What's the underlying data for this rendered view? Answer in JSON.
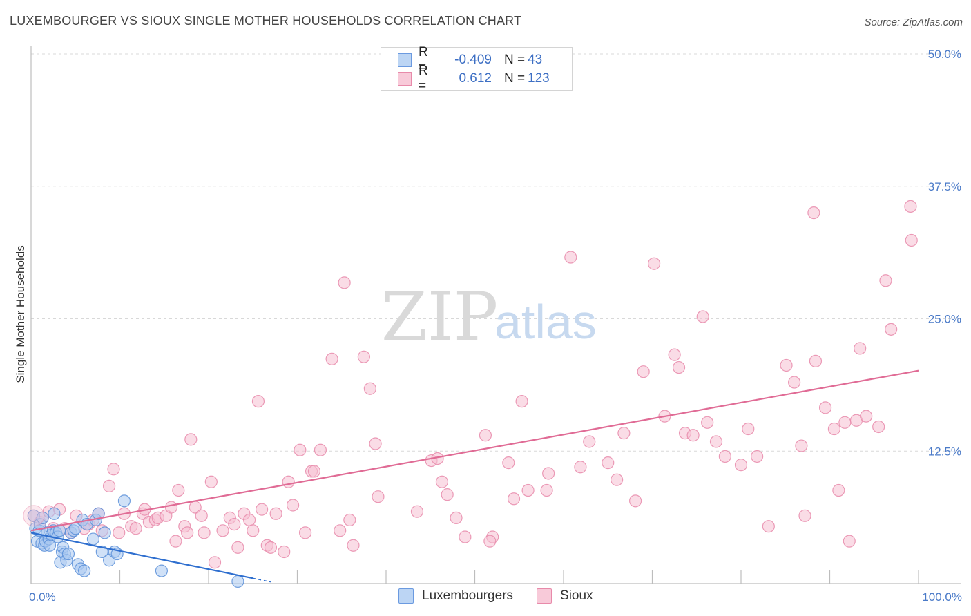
{
  "title": "LUXEMBOURGER VS SIOUX SINGLE MOTHER HOUSEHOLDS CORRELATION CHART",
  "source": "Source: ZipAtlas.com",
  "watermark": {
    "zip": "ZIP",
    "atlas": "atlas"
  },
  "colors": {
    "blue_fill": "#a9c8f0",
    "blue_stroke": "#5b8fd8",
    "blue_line": "#2f6fcf",
    "pink_fill": "#f6c0d2",
    "pink_stroke": "#e88aaa",
    "pink_line": "#e06b95",
    "grid": "#d8d8d8",
    "tick_text": "#4a7ac8"
  },
  "legend": {
    "rows": [
      {
        "series": "Luxembourgers",
        "r_label": "R =",
        "r_value": "-0.409",
        "n_label": "N =",
        "n_value": "43"
      },
      {
        "series": "Sioux",
        "r_label": "R =",
        "r_value": "0.612",
        "n_label": "N =",
        "n_value": "123"
      }
    ]
  },
  "bottom_legend": {
    "items": [
      "Luxembourgers",
      "Sioux"
    ]
  },
  "chart_data": {
    "type": "scatter",
    "title": "LUXEMBOURGER VS SIOUX SINGLE MOTHER HOUSEHOLDS CORRELATION CHART",
    "xlabel": "",
    "ylabel": "Single Mother Households",
    "xlim": [
      0,
      100
    ],
    "ylim": [
      0,
      50
    ],
    "x_tick_labels": [
      "0.0%",
      "100.0%"
    ],
    "y_ticks": [
      12.5,
      25.0,
      37.5,
      50.0
    ],
    "y_tick_labels": [
      "12.5%",
      "25.0%",
      "37.5%",
      "50.0%"
    ],
    "grid": true,
    "series": [
      {
        "name": "Luxembourgers",
        "color": "#5b8fd8",
        "trend": {
          "x": [
            0,
            25
          ],
          "y": [
            4.8,
            0.5
          ],
          "dashed_to_x": 27
        },
        "points": [
          [
            0.3,
            6.4
          ],
          [
            0.5,
            5.2
          ],
          [
            0.7,
            4.0
          ],
          [
            0.9,
            5.0
          ],
          [
            1.0,
            5.6
          ],
          [
            1.2,
            3.8
          ],
          [
            1.3,
            6.2
          ],
          [
            1.5,
            3.6
          ],
          [
            1.6,
            4.0
          ],
          [
            1.8,
            4.8
          ],
          [
            2.0,
            4.2
          ],
          [
            2.1,
            3.6
          ],
          [
            2.3,
            4.6
          ],
          [
            2.5,
            5.0
          ],
          [
            2.6,
            6.6
          ],
          [
            2.8,
            4.8
          ],
          [
            3.0,
            4.4
          ],
          [
            3.2,
            5.0
          ],
          [
            3.3,
            2.0
          ],
          [
            3.5,
            3.0
          ],
          [
            3.6,
            3.4
          ],
          [
            3.8,
            2.8
          ],
          [
            4.0,
            2.2
          ],
          [
            4.2,
            2.8
          ],
          [
            4.5,
            4.8
          ],
          [
            4.8,
            5.0
          ],
          [
            5.0,
            5.2
          ],
          [
            5.3,
            1.8
          ],
          [
            5.6,
            1.4
          ],
          [
            5.8,
            6.0
          ],
          [
            6.0,
            1.2
          ],
          [
            6.3,
            5.6
          ],
          [
            7.0,
            4.2
          ],
          [
            7.3,
            6.0
          ],
          [
            7.6,
            6.6
          ],
          [
            8.0,
            3.0
          ],
          [
            8.8,
            2.2
          ],
          [
            8.3,
            4.8
          ],
          [
            9.4,
            3.0
          ],
          [
            9.7,
            2.8
          ],
          [
            10.5,
            7.8
          ],
          [
            14.7,
            1.2
          ],
          [
            23.3,
            0.2
          ]
        ]
      },
      {
        "name": "Sioux",
        "color": "#e88aaa",
        "trend": {
          "x": [
            0,
            100
          ],
          "y": [
            5.0,
            20.1
          ]
        },
        "points": [
          [
            0.3,
            6.4
          ],
          [
            1.0,
            5.8
          ],
          [
            1.3,
            6.2
          ],
          [
            2.0,
            6.8
          ],
          [
            2.5,
            5.2
          ],
          [
            3.2,
            7.0
          ],
          [
            3.8,
            5.2
          ],
          [
            4.5,
            4.8
          ],
          [
            5.1,
            6.4
          ],
          [
            6.0,
            5.2
          ],
          [
            6.5,
            5.6
          ],
          [
            7.0,
            6.0
          ],
          [
            7.6,
            6.6
          ],
          [
            8.0,
            5.0
          ],
          [
            8.8,
            9.2
          ],
          [
            9.3,
            10.8
          ],
          [
            9.9,
            4.8
          ],
          [
            10.5,
            6.6
          ],
          [
            11.3,
            5.4
          ],
          [
            11.8,
            5.2
          ],
          [
            12.6,
            6.6
          ],
          [
            12.8,
            7.0
          ],
          [
            13.3,
            5.8
          ],
          [
            14.0,
            6.0
          ],
          [
            14.3,
            6.2
          ],
          [
            15.2,
            6.4
          ],
          [
            15.8,
            7.2
          ],
          [
            16.3,
            4.0
          ],
          [
            16.6,
            8.8
          ],
          [
            17.3,
            5.4
          ],
          [
            17.6,
            4.8
          ],
          [
            18.0,
            13.6
          ],
          [
            18.5,
            7.2
          ],
          [
            19.2,
            6.4
          ],
          [
            19.5,
            4.8
          ],
          [
            20.3,
            9.6
          ],
          [
            20.7,
            2.0
          ],
          [
            21.6,
            5.0
          ],
          [
            22.4,
            6.2
          ],
          [
            22.9,
            5.6
          ],
          [
            23.3,
            3.4
          ],
          [
            24.0,
            6.6
          ],
          [
            24.6,
            6.0
          ],
          [
            25.0,
            5.0
          ],
          [
            25.6,
            17.2
          ],
          [
            26.0,
            7.0
          ],
          [
            26.6,
            3.6
          ],
          [
            27.0,
            3.4
          ],
          [
            27.6,
            6.6
          ],
          [
            28.5,
            3.0
          ],
          [
            29.0,
            9.6
          ],
          [
            29.5,
            7.4
          ],
          [
            30.3,
            12.6
          ],
          [
            30.9,
            4.8
          ],
          [
            31.6,
            10.6
          ],
          [
            31.9,
            10.6
          ],
          [
            32.6,
            12.6
          ],
          [
            33.9,
            21.2
          ],
          [
            34.8,
            5.0
          ],
          [
            35.3,
            28.4
          ],
          [
            35.9,
            6.0
          ],
          [
            36.3,
            3.6
          ],
          [
            37.5,
            21.4
          ],
          [
            38.2,
            18.4
          ],
          [
            38.8,
            13.2
          ],
          [
            39.1,
            8.2
          ],
          [
            43.5,
            6.8
          ],
          [
            45.1,
            11.6
          ],
          [
            45.8,
            11.8
          ],
          [
            46.3,
            9.6
          ],
          [
            46.9,
            8.4
          ],
          [
            47.9,
            6.2
          ],
          [
            48.9,
            4.4
          ],
          [
            52.0,
            4.4
          ],
          [
            51.2,
            14.0
          ],
          [
            51.7,
            4.0
          ],
          [
            53.8,
            11.4
          ],
          [
            54.4,
            8.0
          ],
          [
            55.3,
            17.2
          ],
          [
            56.0,
            8.8
          ],
          [
            58.1,
            8.8
          ],
          [
            58.3,
            10.4
          ],
          [
            60.8,
            30.8
          ],
          [
            61.9,
            11.0
          ],
          [
            62.9,
            13.4
          ],
          [
            65.0,
            11.4
          ],
          [
            66.0,
            9.8
          ],
          [
            66.8,
            14.2
          ],
          [
            68.1,
            7.8
          ],
          [
            69.0,
            20.0
          ],
          [
            70.2,
            30.2
          ],
          [
            71.4,
            15.8
          ],
          [
            72.5,
            21.6
          ],
          [
            73.0,
            20.4
          ],
          [
            73.7,
            14.2
          ],
          [
            74.6,
            14.0
          ],
          [
            75.7,
            25.2
          ],
          [
            76.2,
            15.2
          ],
          [
            77.2,
            13.4
          ],
          [
            78.2,
            12.0
          ],
          [
            80.0,
            11.2
          ],
          [
            80.8,
            14.6
          ],
          [
            81.8,
            12.0
          ],
          [
            83.1,
            5.4
          ],
          [
            85.1,
            20.6
          ],
          [
            86.0,
            19.0
          ],
          [
            86.8,
            13.0
          ],
          [
            87.2,
            6.4
          ],
          [
            88.2,
            35.0
          ],
          [
            88.4,
            21.0
          ],
          [
            89.5,
            16.6
          ],
          [
            90.5,
            14.6
          ],
          [
            91.0,
            8.8
          ],
          [
            91.7,
            15.2
          ],
          [
            92.2,
            4.0
          ],
          [
            93.0,
            15.4
          ],
          [
            93.4,
            22.2
          ],
          [
            94.1,
            15.8
          ],
          [
            95.5,
            14.8
          ],
          [
            96.3,
            28.6
          ],
          [
            96.9,
            24.0
          ],
          [
            99.1,
            35.6
          ],
          [
            99.2,
            32.4
          ]
        ]
      }
    ]
  }
}
